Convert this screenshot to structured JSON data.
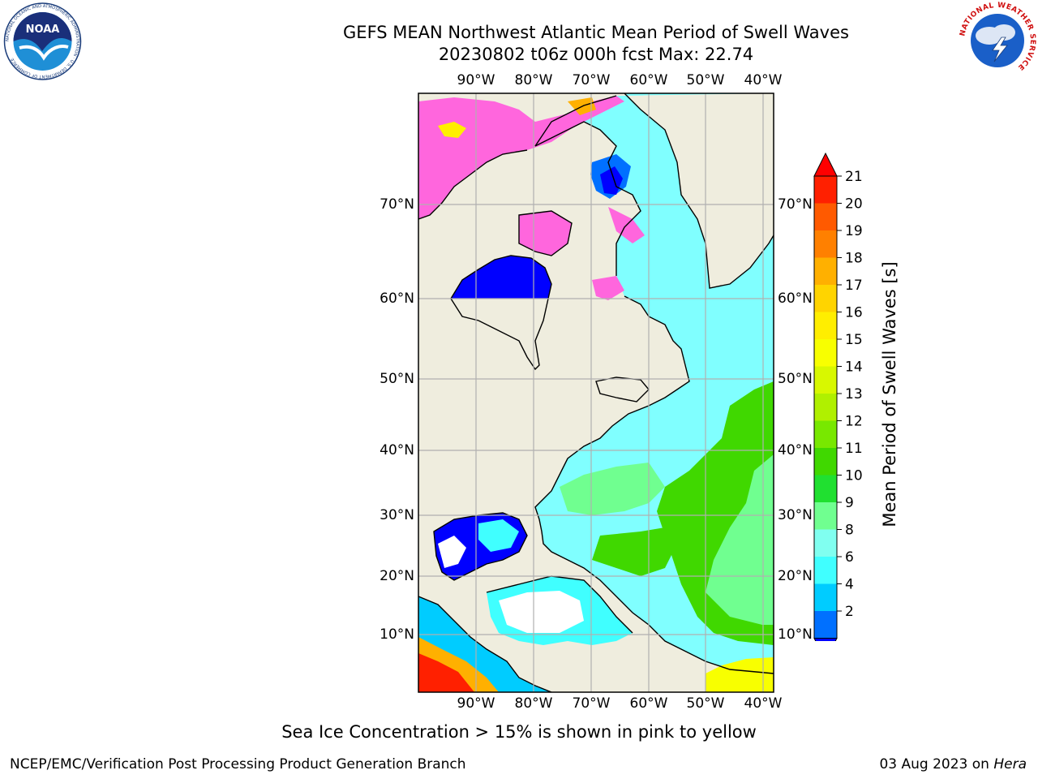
{
  "header": {
    "title": "GEFS MEAN Northwest Atlantic Mean Period of Swell Waves",
    "subtitle": "20230802 t06z 000h fcst   Max: 22.74"
  },
  "logos": {
    "noaa": {
      "text": "NOAA",
      "ring_text": "NATIONAL OCEANIC AND ATMOSPHERIC ADMINISTRATION · U.S. DEPARTMENT OF COMMERCE"
    },
    "nws": {
      "ring_text": "NATIONAL WEATHER SERVICE"
    }
  },
  "map": {
    "lon_labels": [
      "90°W",
      "80°W",
      "70°W",
      "60°W",
      "50°W",
      "40°W"
    ],
    "lat_labels": [
      "70°N",
      "60°N",
      "50°N",
      "40°N",
      "30°N",
      "20°N",
      "10°N"
    ],
    "colors": {
      "land": "#efedde",
      "coast": "#000000",
      "grid": "#b0b0b0"
    }
  },
  "colorbar": {
    "label": "Mean Period of Swell Waves [s]",
    "ticks": [
      "21",
      "20",
      "19",
      "18",
      "17",
      "16",
      "15",
      "14",
      "13",
      "12",
      "11",
      "10",
      "9",
      "8",
      "6",
      "4",
      "2"
    ],
    "colors": [
      "#ff2000",
      "#ff5a00",
      "#ff8000",
      "#ffb000",
      "#ffd400",
      "#ffee00",
      "#f8ff00",
      "#d8f800",
      "#b0f000",
      "#78e800",
      "#40d800",
      "#20e030",
      "#70ff90",
      "#80fff0",
      "#40ffff",
      "#00ccff",
      "#0070ff"
    ],
    "under_color": "#0000ff",
    "over_color": "#ff0000"
  },
  "caption": "Sea Ice Concentration > 15% is shown in pink to yellow",
  "footer": {
    "left": "NCEP/EMC/Verification Post Processing Product Generation Branch",
    "date": "03 Aug 2023 on",
    "host": "Hera"
  }
}
